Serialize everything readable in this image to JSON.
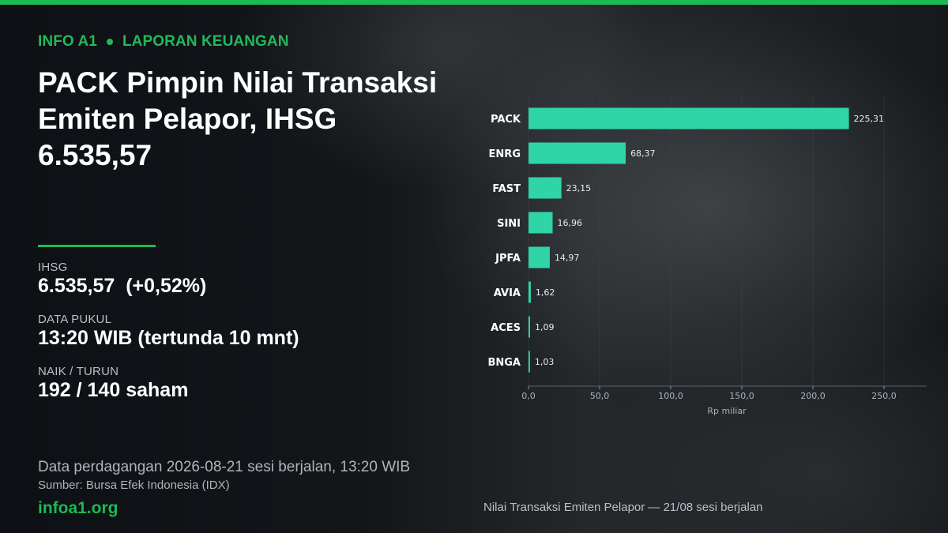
{
  "header": {
    "kicker_left": "INFO A1",
    "kicker_right": "LAPORAN KEUANGAN",
    "headline_lines": [
      "PACK Pimpin Nilai Transaksi",
      "Emiten Pelapor, IHSG",
      "6.535,57"
    ]
  },
  "stats": [
    {
      "label": "IHSG",
      "value": "6.535,57  (+0,52%)"
    },
    {
      "label": "DATA PUKUL",
      "value": "13:20 WIB (tertunda 10 mnt)"
    },
    {
      "label": "NAIK / TURUN",
      "value": "192 / 140 saham"
    }
  ],
  "footer": {
    "note": "Data perdagangan 2026-08-21 sesi berjalan, 13:20 WIB",
    "source": "Sumber: Bursa Efek Indonesia (IDX)",
    "site": "infoa1.org",
    "caption": "Nilai Transaksi Emiten Pelapor — 21/08 sesi berjalan"
  },
  "colors": {
    "accent": "#1db954",
    "bar": "#2fd4a7",
    "grid": "#3a4248"
  },
  "chart_data": {
    "type": "bar",
    "orientation": "horizontal",
    "categories": [
      "PACK",
      "ENRG",
      "FAST",
      "SINI",
      "JPFA",
      "AVIA",
      "ACES",
      "BNGA"
    ],
    "values": [
      225.31,
      68.37,
      23.15,
      16.96,
      14.97,
      1.62,
      1.09,
      1.03
    ],
    "value_labels": [
      "225,31",
      "68,37",
      "23,15",
      "16,96",
      "14,97",
      "1,62",
      "1,09",
      "1,03"
    ],
    "xlabel": "Rp miliar",
    "xlim": [
      0,
      280
    ],
    "xticks": [
      0,
      50,
      100,
      150,
      200,
      250
    ],
    "xtick_labels": [
      "0,0",
      "50,0",
      "100,0",
      "150,0",
      "200,0",
      "250,0"
    ],
    "grid": "vertical"
  }
}
